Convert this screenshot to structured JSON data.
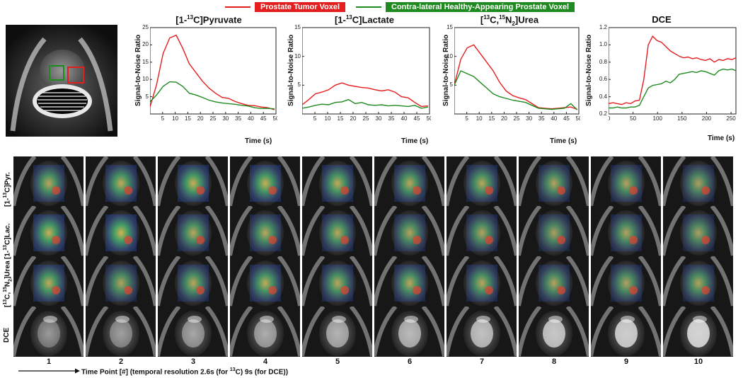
{
  "legend": [
    {
      "label": "Prostate Tumor Voxel",
      "color": "#e41e1e"
    },
    {
      "label": "Contra-lateral Healthy-Appearing Prostate Voxel",
      "color": "#1f8a1f"
    }
  ],
  "charts_text": {
    "titles": [
      "[1-13C]Pyruvate",
      "[1-13C]Lactate",
      "[13C,15N2]Urea",
      "DCE"
    ],
    "ylabel": "Signal-to-Noise Ratio",
    "xlabel": "Time (s)"
  },
  "chart_data": [
    {
      "type": "line",
      "title": "[1-13C]Pyruvate",
      "xlabel": "Time (s)",
      "ylabel": "Signal-to-Noise Ratio",
      "xlim": [
        0,
        50
      ],
      "ylim": [
        0,
        25
      ],
      "xticks": [
        5,
        10,
        15,
        20,
        25,
        30,
        35,
        40,
        45,
        50
      ],
      "yticks": [
        5,
        10,
        15,
        20,
        25
      ],
      "x": [
        0,
        2.6,
        5.2,
        7.8,
        10.4,
        13,
        15.6,
        18.2,
        20.8,
        23.4,
        26,
        28.6,
        31.2,
        33.8,
        36.4,
        39,
        41.6,
        44.2,
        46.8,
        49.4
      ],
      "series": [
        {
          "name": "Prostate Tumor Voxel",
          "color": "#e41e1e",
          "values": [
            2.0,
            8.5,
            17.5,
            22.0,
            22.8,
            19.0,
            14.5,
            12.0,
            9.5,
            7.5,
            6.0,
            4.8,
            4.5,
            3.6,
            3.0,
            2.5,
            2.4,
            2.0,
            1.8,
            1.2
          ]
        },
        {
          "name": "Contra-lateral Healthy-Appearing Prostate Voxel",
          "color": "#1f8a1f",
          "values": [
            3.5,
            5.5,
            8.0,
            9.3,
            9.2,
            8.0,
            6.0,
            5.5,
            4.8,
            4.0,
            3.5,
            3.2,
            3.0,
            2.8,
            2.5,
            2.3,
            1.8,
            1.6,
            1.6,
            1.5
          ]
        }
      ]
    },
    {
      "type": "line",
      "title": "[1-13C]Lactate",
      "xlabel": "Time (s)",
      "ylabel": "Signal-to-Noise Ratio",
      "xlim": [
        0,
        50
      ],
      "ylim": [
        0,
        15
      ],
      "xticks": [
        5,
        10,
        15,
        20,
        25,
        30,
        35,
        40,
        45,
        50
      ],
      "yticks": [
        5,
        10,
        15
      ],
      "x": [
        0,
        2.6,
        5.2,
        7.8,
        10.4,
        13,
        15.6,
        18.2,
        20.8,
        23.4,
        26,
        28.6,
        31.2,
        33.8,
        36.4,
        39,
        41.6,
        44.2,
        46.8,
        49.4
      ],
      "series": [
        {
          "name": "Prostate Tumor Voxel",
          "color": "#e41e1e",
          "values": [
            1.6,
            2.5,
            3.5,
            3.8,
            4.2,
            5.0,
            5.4,
            5.0,
            4.8,
            4.6,
            4.5,
            4.2,
            4.0,
            4.2,
            3.8,
            3.0,
            2.8,
            2.0,
            1.3,
            1.4
          ]
        },
        {
          "name": "Contra-lateral Healthy-Appearing Prostate Voxel",
          "color": "#1f8a1f",
          "values": [
            1.0,
            1.2,
            1.5,
            1.7,
            1.6,
            2.0,
            2.1,
            2.5,
            1.8,
            2.0,
            1.6,
            1.5,
            1.6,
            1.4,
            1.5,
            1.4,
            1.3,
            1.5,
            1.0,
            1.2
          ]
        }
      ]
    },
    {
      "type": "line",
      "title": "[13C,15N2]Urea",
      "xlabel": "Time (s)",
      "ylabel": "Signal-to-Noise Ratio",
      "xlim": [
        0,
        50
      ],
      "ylim": [
        0,
        15
      ],
      "xticks": [
        5,
        10,
        15,
        20,
        25,
        30,
        35,
        40,
        45,
        50
      ],
      "yticks": [
        5,
        10,
        15
      ],
      "x": [
        0,
        2.6,
        5.2,
        7.8,
        10.4,
        13,
        15.6,
        18.2,
        20.8,
        23.4,
        26,
        28.6,
        31.2,
        33.8,
        36.4,
        39,
        41.6,
        44.2,
        46.8,
        49.4
      ],
      "series": [
        {
          "name": "Prostate Tumor Voxel",
          "color": "#e41e1e",
          "values": [
            5.0,
            9.5,
            11.5,
            12.0,
            10.5,
            9.0,
            7.5,
            5.5,
            4.0,
            3.2,
            2.8,
            2.5,
            1.8,
            1.1,
            1.0,
            0.9,
            1.0,
            1.1,
            1.2,
            0.8
          ]
        },
        {
          "name": "Contra-lateral Healthy-Appearing Prostate Voxel",
          "color": "#1f8a1f",
          "values": [
            5.0,
            7.5,
            7.0,
            6.5,
            5.5,
            4.5,
            3.5,
            3.0,
            2.7,
            2.4,
            2.2,
            2.0,
            1.5,
            1.0,
            0.9,
            0.8,
            0.9,
            1.0,
            1.8,
            0.7
          ]
        }
      ]
    },
    {
      "type": "line",
      "title": "DCE",
      "xlabel": "Time (s)",
      "ylabel": "Signal-to-Noise Ratio",
      "xlim": [
        0,
        260
      ],
      "ylim": [
        0.2,
        1.2
      ],
      "xticks": [
        0,
        50,
        100,
        150,
        200,
        250
      ],
      "yticks": [
        0.2,
        0.4,
        0.6,
        0.8,
        1.0,
        1.2
      ],
      "x": [
        0,
        9,
        18,
        27,
        36,
        45,
        54,
        63,
        72,
        81,
        90,
        99,
        108,
        117,
        126,
        135,
        144,
        153,
        162,
        171,
        180,
        189,
        198,
        207,
        216,
        225,
        234,
        243,
        252,
        260
      ],
      "series": [
        {
          "name": "Prostate Tumor Voxel",
          "color": "#e41e1e",
          "values": [
            0.32,
            0.33,
            0.32,
            0.31,
            0.33,
            0.32,
            0.35,
            0.36,
            0.6,
            1.0,
            1.1,
            1.05,
            1.03,
            0.98,
            0.93,
            0.9,
            0.87,
            0.85,
            0.86,
            0.84,
            0.85,
            0.83,
            0.82,
            0.84,
            0.8,
            0.83,
            0.82,
            0.84,
            0.83,
            0.85
          ]
        },
        {
          "name": "Contra-lateral Healthy-Appearing Prostate Voxel",
          "color": "#1f8a1f",
          "values": [
            0.27,
            0.27,
            0.28,
            0.27,
            0.27,
            0.28,
            0.28,
            0.3,
            0.4,
            0.5,
            0.53,
            0.54,
            0.55,
            0.58,
            0.56,
            0.6,
            0.66,
            0.67,
            0.68,
            0.69,
            0.68,
            0.7,
            0.69,
            0.67,
            0.65,
            0.7,
            0.72,
            0.71,
            0.72,
            0.7
          ]
        }
      ]
    }
  ],
  "row_labels": [
    "[1-13C]Pyr.",
    "[1-13C]Lac.",
    "[13C,15N2]Urea",
    "DCE"
  ],
  "time_points": [
    "1",
    "2",
    "3",
    "4",
    "5",
    "6",
    "7",
    "8",
    "9",
    "10"
  ],
  "bottom_label": {
    "prefix": "Time Point [#] (temporal resolution 2.6s (for ",
    "sup": "13",
    "suffix": "C) 9s (for DCE))"
  },
  "colors": {
    "tumor": "#e41e1e",
    "healthy": "#1f8a1f",
    "axis": "#222222"
  }
}
